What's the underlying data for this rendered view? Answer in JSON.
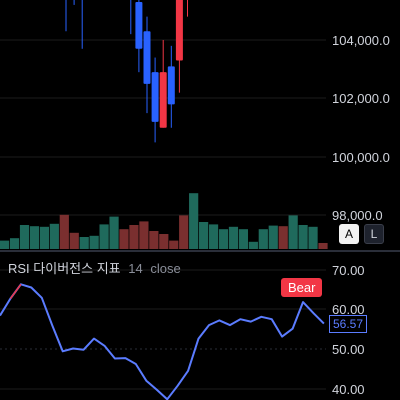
{
  "price_axis": [
    "104,000.0",
    "102,000.0",
    "100,000.0",
    "98,000.0"
  ],
  "scale_buttons": {
    "auto": "A",
    "log": "L"
  },
  "indicator": {
    "name": "RSI 다이버전스 지표",
    "length": "14",
    "source": "close"
  },
  "rsi_axis": [
    "70.00",
    "60.00",
    "50.00",
    "40.00"
  ],
  "divergence_label": "Bear",
  "rsi_current": "56.57",
  "colors": {
    "up": "#f23645",
    "down": "#2962ff",
    "volume_up": "#7a2f2f",
    "volume_down": "#1f6a5c",
    "rsi_line": "#5b7cff",
    "divergence": "#f23645"
  },
  "chart_data": [
    {
      "type": "candlestick",
      "title": "",
      "ylabel": "",
      "ylim": [
        97500,
        106800
      ],
      "candles": [
        {
          "open": 106900,
          "close": 106900,
          "high": 106900,
          "low": 104300,
          "dir": "down"
        },
        {
          "open": 106900,
          "close": 106900,
          "high": 106900,
          "low": 105200,
          "dir": "down"
        },
        {
          "open": 106900,
          "close": 106900,
          "high": 106900,
          "low": 103700,
          "dir": "down"
        },
        {
          "open": 106900,
          "close": 106900,
          "high": 106900,
          "low": 105800,
          "dir": "down"
        },
        {
          "open": 106900,
          "close": 106900,
          "high": 106900,
          "low": 105600,
          "dir": "down"
        },
        {
          "open": 106900,
          "close": 106400,
          "high": 106900,
          "low": 106300,
          "dir": "down"
        },
        {
          "open": 106600,
          "close": 106000,
          "high": 106900,
          "low": 105400,
          "dir": "down"
        },
        {
          "open": 106400,
          "close": 106400,
          "high": 106900,
          "low": 106200,
          "dir": "up"
        },
        {
          "open": 106200,
          "close": 105600,
          "high": 106900,
          "low": 104200,
          "dir": "down"
        },
        {
          "open": 105300,
          "close": 103700,
          "high": 106000,
          "low": 102900,
          "dir": "down"
        },
        {
          "open": 104300,
          "close": 102500,
          "high": 104800,
          "low": 101500,
          "dir": "down"
        },
        {
          "open": 102900,
          "close": 101200,
          "high": 103400,
          "low": 100500,
          "dir": "down"
        },
        {
          "open": 101000,
          "close": 102900,
          "high": 104000,
          "low": 101000,
          "dir": "up"
        },
        {
          "open": 103100,
          "close": 101800,
          "high": 103800,
          "low": 101000,
          "dir": "down"
        },
        {
          "open": 103300,
          "close": 105900,
          "high": 106900,
          "low": 102200,
          "dir": "up"
        },
        {
          "open": 105500,
          "close": 106900,
          "high": 106900,
          "low": 104800,
          "dir": "up"
        },
        {
          "open": 106900,
          "close": 106900,
          "high": 106900,
          "low": 106400,
          "dir": "up"
        },
        {
          "open": 106900,
          "close": 106900,
          "high": 106900,
          "low": 106700,
          "dir": "up"
        }
      ]
    },
    {
      "type": "bar",
      "title": "",
      "ylabel": "",
      "ylim": [
        0,
        100
      ],
      "values": [
        {
          "v": 14,
          "dir": "down"
        },
        {
          "v": 18,
          "dir": "down"
        },
        {
          "v": 40,
          "dir": "down"
        },
        {
          "v": 38,
          "dir": "down"
        },
        {
          "v": 37,
          "dir": "down"
        },
        {
          "v": 42,
          "dir": "down"
        },
        {
          "v": 57,
          "dir": "up"
        },
        {
          "v": 27,
          "dir": "up"
        },
        {
          "v": 20,
          "dir": "down"
        },
        {
          "v": 22,
          "dir": "down"
        },
        {
          "v": 41,
          "dir": "down"
        },
        {
          "v": 54,
          "dir": "down"
        },
        {
          "v": 33,
          "dir": "up"
        },
        {
          "v": 40,
          "dir": "up"
        },
        {
          "v": 46,
          "dir": "up"
        },
        {
          "v": 30,
          "dir": "up"
        },
        {
          "v": 25,
          "dir": "up"
        },
        {
          "v": 14,
          "dir": "up"
        },
        {
          "v": 56,
          "dir": "up"
        },
        {
          "v": 93,
          "dir": "down"
        },
        {
          "v": 45,
          "dir": "down"
        },
        {
          "v": 41,
          "dir": "down"
        },
        {
          "v": 33,
          "dir": "down"
        },
        {
          "v": 37,
          "dir": "down"
        },
        {
          "v": 33,
          "dir": "down"
        },
        {
          "v": 12,
          "dir": "down"
        },
        {
          "v": 33,
          "dir": "down"
        },
        {
          "v": 39,
          "dir": "down"
        },
        {
          "v": 38,
          "dir": "up"
        },
        {
          "v": 56,
          "dir": "down"
        },
        {
          "v": 40,
          "dir": "down"
        },
        {
          "v": 37,
          "dir": "down"
        },
        {
          "v": 10,
          "dir": "up"
        }
      ]
    },
    {
      "type": "line",
      "title": "RSI 다이버전스 지표 14 close",
      "ylabel": "",
      "ylim": [
        36,
        71
      ],
      "series": [
        {
          "name": "",
          "values": [
            58.5,
            62.8,
            66.4,
            65.6,
            63.0,
            56.0,
            49.5,
            50.2,
            49.9,
            52.7,
            50.9,
            47.7,
            47.8,
            46.3,
            42.1,
            39.8,
            37.4,
            40.8,
            44.6,
            52.7,
            56.1,
            57.3,
            56.1,
            57.6,
            57.0,
            58.2,
            57.6,
            53.2,
            55.2,
            61.9,
            59.1,
            56.5
          ]
        },
        {
          "name": "Bear",
          "values": [
            66.4,
            62.8
          ]
        }
      ]
    }
  ]
}
